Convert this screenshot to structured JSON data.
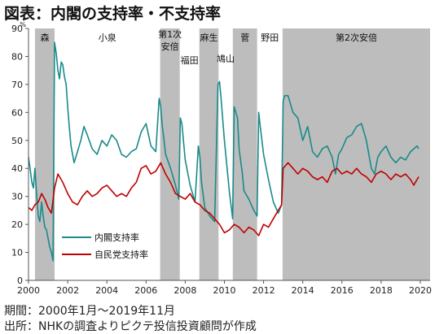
{
  "title": "図表：内閣の支持率・不支持率",
  "footer": {
    "period": "期間：2000年1月～2019年11月",
    "source": "出所：NHKの調査よりピクテ投信投資顧問が作成"
  },
  "chart_data": {
    "type": "line",
    "title": "図表：内閣の支持率・不支持率",
    "ylabel": "%",
    "xlim": [
      2000,
      2020.5
    ],
    "ylim": [
      0,
      90
    ],
    "yticks": [
      0,
      10,
      20,
      30,
      40,
      50,
      60,
      70,
      80,
      90
    ],
    "xticks": [
      2000,
      2002,
      2004,
      2006,
      2008,
      2010,
      2012,
      2014,
      2016,
      2018,
      2020
    ],
    "legend_position": "lower-left",
    "grid": false,
    "colors": {
      "cabinet": "#1a8a8a",
      "ldp": "#c00000",
      "shade": "#bdbdbd",
      "axis": "#555555"
    },
    "administrations": [
      {
        "name": "森",
        "start": 2000.33,
        "end": 2001.33,
        "shaded": true
      },
      {
        "name": "小泉",
        "start": 2001.33,
        "end": 2006.72,
        "shaded": false
      },
      {
        "name": "第1次安倍",
        "start": 2006.72,
        "end": 2007.72,
        "shaded": true
      },
      {
        "name": "福田",
        "start": 2007.72,
        "end": 2008.72,
        "shaded": false
      },
      {
        "name": "麻生",
        "start": 2008.72,
        "end": 2009.7,
        "shaded": true
      },
      {
        "name": "鳩山",
        "start": 2009.7,
        "end": 2010.43,
        "shaded": false
      },
      {
        "name": "菅",
        "start": 2010.43,
        "end": 2011.67,
        "shaded": true
      },
      {
        "name": "野田",
        "start": 2011.67,
        "end": 2012.97,
        "shaded": false
      },
      {
        "name": "第2次安倍",
        "start": 2012.97,
        "end": 2020.5,
        "shaded": true
      }
    ],
    "series": [
      {
        "name": "内閣支持率",
        "x": [
          2000.0,
          2000.08,
          2000.17,
          2000.25,
          2000.33,
          2000.42,
          2000.5,
          2000.58,
          2000.67,
          2000.75,
          2000.83,
          2000.92,
          2001.0,
          2001.08,
          2001.17,
          2001.25,
          2001.33,
          2001.42,
          2001.5,
          2001.58,
          2001.67,
          2001.75,
          2001.83,
          2001.92,
          2002.0,
          2002.08,
          2002.17,
          2002.33,
          2002.5,
          2002.67,
          2002.83,
          2003.0,
          2003.25,
          2003.5,
          2003.75,
          2004.0,
          2004.25,
          2004.5,
          2004.75,
          2005.0,
          2005.25,
          2005.5,
          2005.75,
          2006.0,
          2006.25,
          2006.5,
          2006.67,
          2006.75,
          2006.83,
          2006.92,
          2007.0,
          2007.25,
          2007.5,
          2007.67,
          2007.75,
          2007.83,
          2008.0,
          2008.25,
          2008.5,
          2008.67,
          2008.75,
          2008.83,
          2009.0,
          2009.25,
          2009.5,
          2009.67,
          2009.75,
          2009.83,
          2010.0,
          2010.25,
          2010.42,
          2010.5,
          2010.67,
          2010.75,
          2010.92,
          2011.0,
          2011.25,
          2011.5,
          2011.67,
          2011.75,
          2011.83,
          2012.0,
          2012.25,
          2012.5,
          2012.75,
          2012.92,
          2013.0,
          2013.08,
          2013.25,
          2013.5,
          2013.75,
          2014.0,
          2014.25,
          2014.5,
          2014.75,
          2015.0,
          2015.25,
          2015.5,
          2015.67,
          2015.83,
          2016.0,
          2016.25,
          2016.5,
          2016.75,
          2017.0,
          2017.25,
          2017.5,
          2017.67,
          2017.83,
          2018.0,
          2018.25,
          2018.5,
          2018.75,
          2019.0,
          2019.25,
          2019.5,
          2019.67,
          2019.83,
          2019.92
        ],
        "values": [
          44,
          40,
          35,
          33,
          40,
          30,
          23,
          21,
          28,
          23,
          19,
          18,
          15,
          12,
          10,
          7,
          85,
          81,
          75,
          72,
          78,
          77,
          73,
          70,
          62,
          55,
          48,
          42,
          46,
          50,
          55,
          52,
          47,
          45,
          50,
          48,
          52,
          50,
          45,
          44,
          46,
          47,
          53,
          56,
          48,
          46,
          65,
          62,
          55,
          50,
          45,
          40,
          34,
          29,
          58,
          56,
          43,
          34,
          28,
          48,
          44,
          35,
          26,
          23,
          21,
          70,
          71,
          65,
          50,
          32,
          22,
          62,
          58,
          47,
          38,
          32,
          29,
          25,
          23,
          60,
          55,
          45,
          36,
          28,
          24,
          27,
          64,
          66,
          66,
          60,
          58,
          50,
          55,
          46,
          44,
          47,
          48,
          44,
          38,
          45,
          47,
          51,
          52,
          55,
          56,
          50,
          40,
          38,
          44,
          46,
          48,
          44,
          42,
          44,
          43,
          46,
          47,
          48,
          47
        ]
      },
      {
        "name": "自民党支持率",
        "x": [
          2000.0,
          2000.17,
          2000.33,
          2000.5,
          2000.67,
          2000.83,
          2001.0,
          2001.17,
          2001.33,
          2001.5,
          2001.75,
          2002.0,
          2002.25,
          2002.5,
          2002.75,
          2003.0,
          2003.25,
          2003.5,
          2003.75,
          2004.0,
          2004.25,
          2004.5,
          2004.75,
          2005.0,
          2005.25,
          2005.5,
          2005.75,
          2006.0,
          2006.25,
          2006.5,
          2006.75,
          2007.0,
          2007.25,
          2007.5,
          2007.75,
          2008.0,
          2008.25,
          2008.5,
          2008.75,
          2009.0,
          2009.25,
          2009.5,
          2009.75,
          2010.0,
          2010.25,
          2010.5,
          2010.75,
          2011.0,
          2011.25,
          2011.5,
          2011.75,
          2012.0,
          2012.25,
          2012.5,
          2012.75,
          2012.92,
          2013.0,
          2013.25,
          2013.5,
          2013.75,
          2014.0,
          2014.25,
          2014.5,
          2014.75,
          2015.0,
          2015.25,
          2015.5,
          2015.75,
          2016.0,
          2016.25,
          2016.5,
          2016.75,
          2017.0,
          2017.25,
          2017.5,
          2017.75,
          2018.0,
          2018.25,
          2018.5,
          2018.75,
          2019.0,
          2019.25,
          2019.5,
          2019.67,
          2019.83,
          2019.92
        ],
        "values": [
          26,
          25,
          27,
          28,
          31,
          29,
          26,
          24,
          33,
          38,
          35,
          31,
          28,
          27,
          30,
          32,
          30,
          31,
          33,
          34,
          32,
          30,
          31,
          30,
          33,
          35,
          40,
          41,
          38,
          39,
          42,
          38,
          35,
          31,
          30,
          29,
          31,
          28,
          27,
          25,
          24,
          22,
          20,
          17,
          18,
          20,
          19,
          17,
          19,
          18,
          16,
          20,
          19,
          22,
          25,
          27,
          40,
          42,
          40,
          38,
          40,
          39,
          37,
          36,
          37,
          35,
          39,
          40,
          38,
          39,
          38,
          40,
          38,
          37,
          35,
          38,
          39,
          38,
          36,
          38,
          37,
          38,
          36,
          34,
          36,
          37
        ]
      }
    ]
  }
}
